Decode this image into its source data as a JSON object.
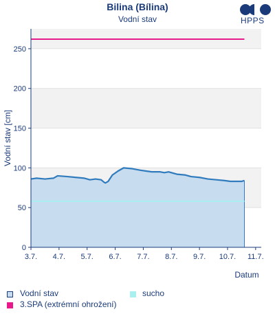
{
  "header": {
    "title": "Bilina (Bílina)",
    "subtitle": "Vodní stav",
    "logo_text": "HPPS"
  },
  "colors": {
    "level_line": "#2f7bbd",
    "level_fill": "#c7dcee",
    "drought": "#a8f0f0",
    "spa3": "#e8198b",
    "band": "#f2f2f2",
    "axis": "#1a3a7a"
  },
  "legend": {
    "level": "Vodní stav",
    "drought": "sucho",
    "spa3": "3.SPA (extrémní ohrožení)"
  },
  "chart_data": {
    "type": "area",
    "title": "Bilina (Bílina)",
    "subtitle": "Vodní stav",
    "ylabel": "Vodní stav [cm]",
    "xlabel": "Datum",
    "ylim": [
      0,
      275
    ],
    "yticks": [
      0,
      50,
      100,
      150,
      200,
      250
    ],
    "xlim": [
      0,
      8.2
    ],
    "xticks": [
      "3.7.",
      "4.7.",
      "5.7.",
      "6.7.",
      "7.7.",
      "8.7.",
      "9.7.",
      "10.7.",
      "11.7."
    ],
    "thresholds": [
      {
        "name": "3.SPA (extrémní ohrožení)",
        "value": 262
      },
      {
        "name": "sucho",
        "value": 58
      }
    ],
    "series": [
      {
        "name": "Vodní stav",
        "x": [
          0,
          0.2,
          0.5,
          0.8,
          0.95,
          1.3,
          1.6,
          1.9,
          2.1,
          2.3,
          2.5,
          2.6,
          2.65,
          2.75,
          2.9,
          3.1,
          3.3,
          3.6,
          3.9,
          4.1,
          4.3,
          4.6,
          4.75,
          4.9,
          5.2,
          5.5,
          5.7,
          6.0,
          6.3,
          6.6,
          6.9,
          7.1,
          7.3,
          7.5,
          7.6
        ],
        "y": [
          86,
          87,
          86,
          87,
          90,
          89,
          88,
          87,
          85,
          86,
          85,
          82,
          81,
          83,
          91,
          96,
          100,
          99,
          97,
          96,
          95,
          95,
          94,
          95,
          92,
          91,
          89,
          88,
          86,
          85,
          84,
          83,
          83,
          83,
          84
        ]
      }
    ],
    "grid": true,
    "legend_position": "bottom"
  }
}
